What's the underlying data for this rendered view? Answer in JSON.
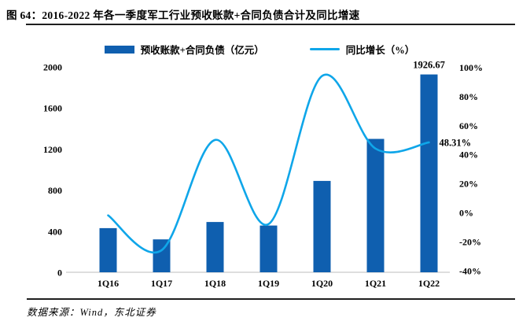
{
  "header": {
    "title": "图 64：2016-2022 年各一季度军工行业预收账款+合同负债合计及同比增速"
  },
  "legend": {
    "bar_label": "预收账款+合同负债（亿元）",
    "line_label": "同比增长（%）"
  },
  "footer": {
    "source": "数据来源：Wind，东北证券"
  },
  "colors": {
    "bar": "#0F5FAF",
    "line": "#0FA6E9",
    "axis": "#C9C9C9",
    "text": "#000000",
    "rule": "#1F1F1F"
  },
  "chart_data": {
    "type": "bar",
    "subtype": "bar-line-combo",
    "categories": [
      "1Q16",
      "1Q17",
      "1Q18",
      "1Q19",
      "1Q20",
      "1Q21",
      "1Q22"
    ],
    "series": [
      {
        "name": "预收账款+合同负债（亿元）",
        "type": "bar",
        "axis": "left",
        "values": [
          430,
          320,
          490,
          455,
          890,
          1299,
          1926.67
        ]
      },
      {
        "name": "同比增长（%）",
        "type": "line",
        "axis": "right",
        "values": [
          -2,
          -26,
          50,
          -8,
          94,
          44,
          48.31
        ]
      }
    ],
    "left_axis": {
      "ticks": [
        0,
        400,
        800,
        1200,
        1600,
        2000
      ],
      "range": [
        0,
        2000
      ]
    },
    "right_axis": {
      "ticks": [
        "100%",
        "80%",
        "60%",
        "40%",
        "20%",
        "0%",
        "-20%",
        "-40%"
      ],
      "range": [
        -40,
        100
      ]
    },
    "grid": "off",
    "legend_position": "top-center",
    "annotations": [
      {
        "text": "1926.67",
        "series": "bar",
        "index": 6
      },
      {
        "text": "48.31%",
        "series": "line",
        "index": 6
      }
    ]
  }
}
